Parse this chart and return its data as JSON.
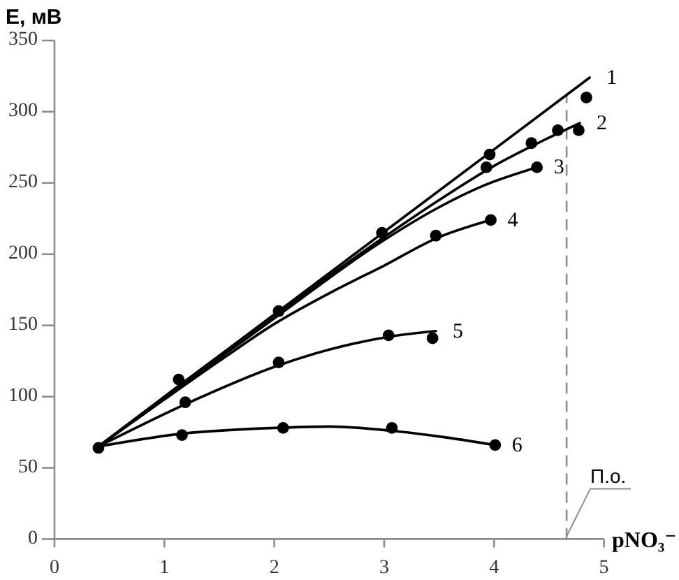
{
  "chart_data": {
    "type": "line",
    "xlabel": "pNO₃⁻",
    "ylabel": "E, мВ",
    "xlim": [
      0,
      5
    ],
    "ylim": [
      0,
      350
    ],
    "xticks": [
      0,
      1,
      2,
      3,
      4,
      5
    ],
    "yticks": [
      0,
      50,
      100,
      150,
      200,
      250,
      300,
      350
    ],
    "series": [
      {
        "name": "1",
        "color": "#000000",
        "x": [
          0.4,
          4.87
        ],
        "values": [
          65,
          324
        ]
      },
      {
        "name": "2",
        "color": "#000000",
        "x": [
          0.4,
          1,
          2,
          3,
          3.5,
          4,
          4.4,
          4.78
        ],
        "values": [
          65,
          100,
          157,
          212,
          238,
          262,
          278,
          292
        ]
      },
      {
        "name": "3",
        "color": "#000000",
        "x": [
          0.4,
          1,
          2,
          3,
          3.5,
          3.9,
          4.39
        ],
        "values": [
          65,
          99,
          155,
          210,
          233,
          248,
          261
        ]
      },
      {
        "name": "4",
        "color": "#000000",
        "x": [
          0.4,
          1,
          1.5,
          2,
          2.56,
          3,
          3.47,
          3.97
        ],
        "values": [
          65,
          98,
          125,
          151,
          175,
          192,
          211,
          224
        ]
      },
      {
        "name": "5",
        "color": "#000000",
        "x": [
          0.4,
          1.2,
          2.04,
          2.5,
          3.04,
          3.47
        ],
        "values": [
          65,
          95,
          122,
          133,
          142,
          146
        ]
      },
      {
        "name": "6",
        "color": "#000000",
        "x": [
          0.4,
          1.16,
          2,
          2.5,
          3.07,
          3.5,
          4.01
        ],
        "values": [
          65,
          74,
          78,
          79,
          76,
          72,
          66
        ]
      },
      {
        "type": "scatter",
        "color": "#000000",
        "marker": "circle",
        "x": [
          0.4,
          1.13,
          2.04,
          2.98,
          3.96,
          3.93,
          4.34,
          4.58,
          4.77,
          4.84,
          4.39,
          3.47,
          3.97,
          1.19,
          2.04,
          3.04,
          3.44,
          1.16,
          2.08,
          3.07,
          4.01
        ],
        "values": [
          64,
          112,
          160,
          215,
          270,
          261,
          278,
          287,
          287,
          310,
          261,
          213,
          224,
          96,
          124,
          143,
          141,
          73,
          78,
          78,
          66
        ]
      }
    ],
    "ref_lines": [
      {
        "axis": "x",
        "value": 4.66,
        "label": "П.о.",
        "line_style": "dashed",
        "color": "#8c8c8c"
      }
    ]
  }
}
